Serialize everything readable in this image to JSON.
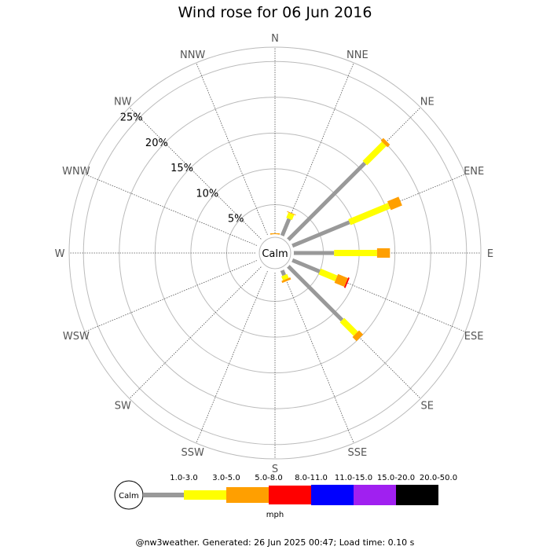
{
  "chart_data": {
    "type": "wind-rose",
    "title": "Wind rose for 06 Jun 2016",
    "directions": [
      "N",
      "NNE",
      "NE",
      "ENE",
      "E",
      "ESE",
      "SE",
      "SSE",
      "S",
      "SSW",
      "SW",
      "WSW",
      "W",
      "WNW",
      "NW",
      "NNW"
    ],
    "radial_ticks": [
      "5%",
      "10%",
      "15%",
      "20%",
      "25%"
    ],
    "radial_max_percent": 27,
    "calm_label": "Calm",
    "speed_bins": [
      {
        "label": "1.0-3.0",
        "color": "#999999"
      },
      {
        "label": "3.0-5.0",
        "color": "#ffff00"
      },
      {
        "label": "5.0-8.0",
        "color": "#ff9f00"
      },
      {
        "label": "8.0-11.0",
        "color": "#ff0000"
      },
      {
        "label": "11.0-15.0",
        "color": "#0000ff"
      },
      {
        "label": "15.0-20.0",
        "color": "#a020f0"
      },
      {
        "label": "20.0-50.0",
        "color": "#000000"
      }
    ],
    "units": "mph",
    "series": [
      {
        "direction": "N",
        "values": [
          0.5,
          0.3,
          0.2,
          0,
          0,
          0,
          0
        ]
      },
      {
        "direction": "NNE",
        "values": [
          3.4,
          0.8,
          0.1,
          0,
          0,
          0,
          0
        ]
      },
      {
        "direction": "NE",
        "values": [
          16.0,
          3.8,
          0.5,
          0,
          0,
          0,
          0
        ]
      },
      {
        "direction": "ENE",
        "values": [
          9.5,
          6.0,
          1.7,
          0,
          0,
          0,
          0
        ]
      },
      {
        "direction": "E",
        "values": [
          6.5,
          6.0,
          1.8,
          0,
          0,
          0,
          0
        ]
      },
      {
        "direction": "ESE",
        "values": [
          5.0,
          2.5,
          1.5,
          0.2,
          0,
          0,
          0
        ]
      },
      {
        "direction": "SE",
        "values": [
          11.5,
          2.7,
          0.8,
          0,
          0,
          0,
          0
        ]
      },
      {
        "direction": "SSE",
        "values": [
          1.6,
          0.6,
          0.3,
          0,
          0,
          0,
          0
        ]
      },
      {
        "direction": "S",
        "values": [
          0.3,
          0.2,
          0.2,
          0,
          0,
          0,
          0
        ]
      },
      {
        "direction": "SSW",
        "values": [
          0,
          0,
          0,
          0,
          0,
          0,
          0
        ]
      },
      {
        "direction": "SW",
        "values": [
          0,
          0,
          0,
          0,
          0,
          0,
          0
        ]
      },
      {
        "direction": "WSW",
        "values": [
          0,
          0,
          0,
          0,
          0,
          0,
          0
        ]
      },
      {
        "direction": "W",
        "values": [
          0.2,
          0,
          0,
          0,
          0,
          0,
          0
        ]
      },
      {
        "direction": "WNW",
        "values": [
          0,
          0,
          0,
          0,
          0,
          0,
          0
        ]
      },
      {
        "direction": "NW",
        "values": [
          0,
          0,
          0,
          0,
          0,
          0,
          0
        ]
      },
      {
        "direction": "NNW",
        "values": [
          0,
          0,
          0,
          0,
          0,
          0,
          0
        ]
      }
    ]
  },
  "footer": "@nw3weather. Generated: 26 Jun 2025 00:47; Load time: 0.10 s"
}
